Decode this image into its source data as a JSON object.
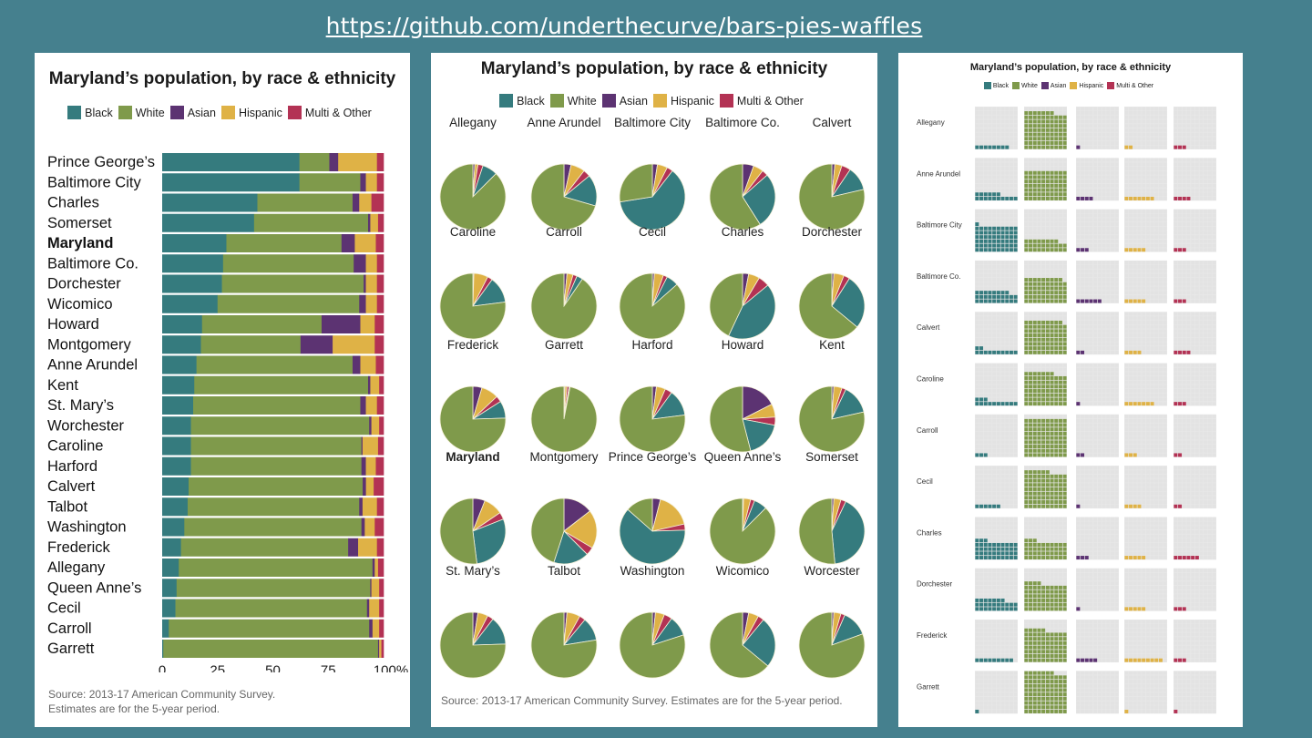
{
  "header": {
    "url": "https://github.com/underthecurve/bars-pies-waffles"
  },
  "colors": {
    "Black": "#357b7e",
    "White": "#7f9a4b",
    "Asian": "#5c3372",
    "Hispanic": "#dfb246",
    "Multi & Other": "#b33254",
    "grid_bg": "#e8e8e8"
  },
  "legend": [
    "Black",
    "White",
    "Asian",
    "Hispanic",
    "Multi & Other"
  ],
  "chart_data": [
    {
      "type": "bar",
      "orientation": "horizontal-stacked",
      "title": "Maryland’s population, by race & ethnicity",
      "series_names": [
        "Black",
        "White",
        "Asian",
        "Hispanic",
        "Multi & Other"
      ],
      "categories": [
        "Prince George’s",
        "Baltimore City",
        "Charles",
        "Somerset",
        "Maryland",
        "Baltimore Co.",
        "Dorchester",
        "Wicomico",
        "Howard",
        "Montgomery",
        "Anne Arundel",
        "Kent",
        "St. Mary’s",
        "Worchester",
        "Caroline",
        "Harford",
        "Calvert",
        "Talbot",
        "Washington",
        "Frederick",
        "Allegany",
        "Queen Anne’s",
        "Cecil",
        "Carroll",
        "Garrett"
      ],
      "highlight": "Maryland",
      "values": [
        [
          62,
          13.5,
          4,
          17.5,
          3
        ],
        [
          62,
          27.5,
          2.5,
          5,
          3
        ],
        [
          43,
          43,
          3,
          5.5,
          5.5
        ],
        [
          41.5,
          51.5,
          1,
          3.5,
          2.5
        ],
        [
          29,
          52,
          6,
          9.5,
          3.5
        ],
        [
          27.5,
          59,
          5.5,
          5,
          3
        ],
        [
          27,
          64,
          1,
          5,
          3
        ],
        [
          25,
          64,
          3,
          5,
          3
        ],
        [
          18,
          54,
          17.5,
          6.5,
          4
        ],
        [
          17.5,
          45,
          14.5,
          19,
          4
        ],
        [
          15.5,
          70.5,
          3.5,
          7,
          3.5
        ],
        [
          14.5,
          78.5,
          1,
          4,
          2
        ],
        [
          14,
          75.5,
          2.5,
          5,
          3
        ],
        [
          13,
          80.5,
          1,
          3.5,
          2
        ],
        [
          13,
          77,
          0.5,
          7,
          2.5
        ],
        [
          13,
          77,
          2,
          4.5,
          3.5
        ],
        [
          12,
          79,
          1.5,
          3.5,
          4.5
        ],
        [
          11.5,
          77.5,
          1.5,
          6.5,
          3
        ],
        [
          10,
          80,
          1.5,
          4.5,
          4
        ],
        [
          8.5,
          75.5,
          4.5,
          8.5,
          3
        ],
        [
          7.5,
          87.5,
          1,
          1.5,
          2.5
        ],
        [
          6.5,
          87.5,
          0.5,
          3.5,
          2
        ],
        [
          6,
          86.5,
          1,
          4.5,
          2
        ],
        [
          3,
          90.5,
          1.5,
          3,
          2
        ],
        [
          0.5,
          97,
          0.5,
          1,
          1
        ]
      ],
      "xlim": [
        0,
        100
      ],
      "xticks": [
        "0",
        "25",
        "50",
        "75",
        "100%"
      ],
      "legend_position": "top-center",
      "source": [
        "Source: 2013-17 American Community Survey.",
        "Estimates are for the 5-year period."
      ]
    },
    {
      "type": "pie",
      "layout": "small-multiples 5x5",
      "title": "Maryland’s population, by race & ethnicity",
      "series_names": [
        "Black",
        "White",
        "Asian",
        "Hispanic",
        "Multi & Other"
      ],
      "highlight": "Maryland",
      "pies": [
        {
          "name": "Allegany",
          "values": [
            7.5,
            87.5,
            1,
            1.5,
            2.5
          ]
        },
        {
          "name": "Anne Arundel",
          "values": [
            15.5,
            70.5,
            3.5,
            7,
            3.5
          ]
        },
        {
          "name": "Baltimore City",
          "values": [
            62,
            27.5,
            2.5,
            5,
            3
          ]
        },
        {
          "name": "Baltimore Co.",
          "values": [
            27.5,
            59,
            5.5,
            5,
            3
          ]
        },
        {
          "name": "Calvert",
          "values": [
            12,
            79,
            1.5,
            3.5,
            4.5
          ]
        },
        {
          "name": "Caroline",
          "values": [
            13,
            77,
            0.5,
            7,
            2.5
          ]
        },
        {
          "name": "Carroll",
          "values": [
            3,
            90.5,
            1.5,
            3,
            2
          ]
        },
        {
          "name": "Cecil",
          "values": [
            6,
            86.5,
            1,
            4.5,
            2
          ]
        },
        {
          "name": "Charles",
          "values": [
            43,
            43,
            3,
            5.5,
            5.5
          ]
        },
        {
          "name": "Dorchester",
          "values": [
            27,
            64,
            1,
            5,
            3
          ]
        },
        {
          "name": "Frederick",
          "values": [
            8.5,
            75.5,
            4.5,
            8.5,
            3
          ]
        },
        {
          "name": "Garrett",
          "values": [
            0.5,
            97,
            0.5,
            1,
            1
          ]
        },
        {
          "name": "Harford",
          "values": [
            13,
            77,
            2,
            4.5,
            3.5
          ]
        },
        {
          "name": "Howard",
          "values": [
            18,
            54,
            17.5,
            6.5,
            4
          ]
        },
        {
          "name": "Kent",
          "values": [
            14.5,
            78.5,
            1,
            4,
            2
          ]
        },
        {
          "name": "Maryland",
          "values": [
            29,
            52,
            6,
            9.5,
            3.5
          ]
        },
        {
          "name": "Montgomery",
          "values": [
            17.5,
            45,
            14.5,
            19,
            4
          ]
        },
        {
          "name": "Prince George’s",
          "values": [
            62,
            13.5,
            4,
            17.5,
            3
          ]
        },
        {
          "name": "Queen Anne’s",
          "values": [
            6.5,
            87.5,
            0.5,
            3.5,
            2
          ]
        },
        {
          "name": "Somerset",
          "values": [
            41.5,
            51.5,
            1,
            3.5,
            2.5
          ]
        },
        {
          "name": "St. Mary’s",
          "values": [
            14,
            75.5,
            2.5,
            5,
            3
          ]
        },
        {
          "name": "Talbot",
          "values": [
            11.5,
            77.5,
            1.5,
            6.5,
            3
          ]
        },
        {
          "name": "Washington",
          "values": [
            10,
            80,
            1.5,
            4.5,
            4
          ]
        },
        {
          "name": "Wicomico",
          "values": [
            25,
            64,
            3,
            5,
            3
          ]
        },
        {
          "name": "Worcester",
          "values": [
            13,
            80.5,
            1,
            3.5,
            2
          ]
        }
      ],
      "legend_position": "top-center",
      "source": [
        "Source: 2013-17 American Community Survey. Estimates are for the 5-year period."
      ]
    },
    {
      "type": "waffle",
      "grid": "10x10",
      "title": "Maryland’s population, by race & ethnicity",
      "series_names": [
        "Black",
        "White",
        "Asian",
        "Hispanic",
        "Multi & Other"
      ],
      "rows": [
        {
          "name": "Allegany",
          "values": [
            8,
            87,
            1,
            2,
            3
          ]
        },
        {
          "name": "Anne Arundel",
          "values": [
            16,
            70,
            4,
            7,
            4
          ]
        },
        {
          "name": "Baltimore City",
          "values": [
            61,
            28,
            3,
            5,
            3
          ]
        },
        {
          "name": "Baltimore Co.",
          "values": [
            28,
            59,
            6,
            5,
            3
          ]
        },
        {
          "name": "Calvert",
          "values": [
            12,
            79,
            2,
            4,
            4
          ]
        },
        {
          "name": "Caroline",
          "values": [
            13,
            77,
            1,
            7,
            3
          ]
        },
        {
          "name": "Carroll",
          "values": [
            3,
            90,
            2,
            3,
            2
          ]
        },
        {
          "name": "Cecil",
          "values": [
            6,
            86,
            1,
            4,
            2
          ]
        },
        {
          "name": "Charles",
          "values": [
            43,
            43,
            3,
            5,
            6
          ]
        },
        {
          "name": "Dorchester",
          "values": [
            27,
            64,
            1,
            5,
            3
          ]
        },
        {
          "name": "Frederick",
          "values": [
            9,
            75,
            5,
            9,
            3
          ]
        },
        {
          "name": "Garrett",
          "values": [
            1,
            97,
            0,
            1,
            1
          ]
        }
      ],
      "legend_position": "top-center"
    }
  ]
}
